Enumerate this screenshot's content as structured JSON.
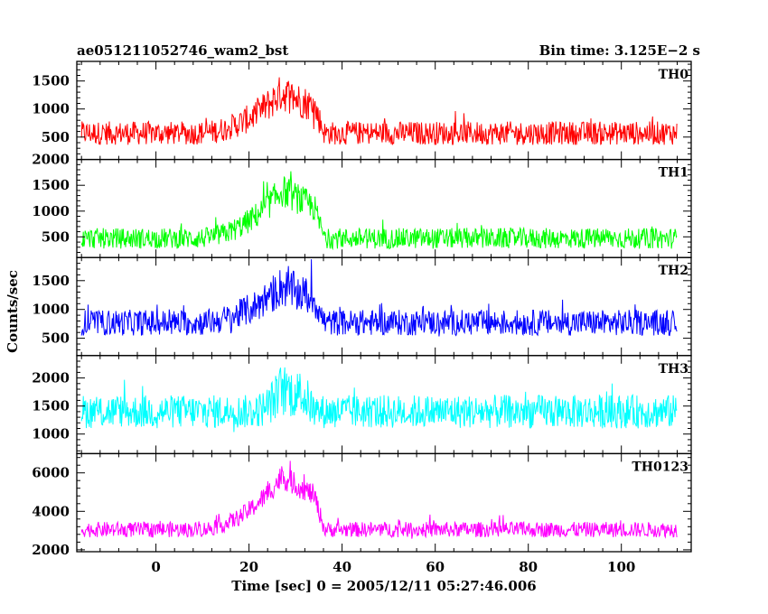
{
  "chart_data": {
    "type": "line",
    "title_left": "ae051211052746_wam2_bst",
    "title_right": "Bin time: 3.125E−2 s",
    "xlabel": "Time [sec] 0 = 2005/12/11 05:27:46.006",
    "ylabel": "Counts/sec",
    "xlim": [
      -17,
      115
    ],
    "x_ticks": [
      "0",
      "20",
      "40",
      "60",
      "80",
      "100"
    ],
    "x_tick_values": [
      0,
      20,
      40,
      60,
      80,
      100
    ],
    "x_range": [
      -16,
      112
    ],
    "bin_time": 0.03125,
    "grid": false,
    "panels": [
      {
        "name": "TH0",
        "color": "#ff0000",
        "ylim": [
          100,
          1850
        ],
        "y_ticks": [
          "500",
          "1000",
          "1500"
        ],
        "y_tick_values": [
          500,
          1000,
          1500
        ],
        "baseline": 570,
        "noise_amplitude": 420,
        "burst_peak_time": 27,
        "burst_peak": 1300,
        "burst_rise_start": 8,
        "burst_decay_end": 34
      },
      {
        "name": "TH1",
        "color": "#00ff00",
        "ylim": [
          100,
          2000
        ],
        "y_ticks": [
          "500",
          "1000",
          "1500",
          "2000"
        ],
        "y_tick_values": [
          500,
          1000,
          1500,
          2000
        ],
        "baseline": 470,
        "noise_amplitude": 400,
        "burst_peak_time": 27,
        "burst_peak": 1400,
        "burst_rise_start": 8,
        "burst_decay_end": 34
      },
      {
        "name": "TH2",
        "color": "#0000ff",
        "ylim": [
          200,
          1900
        ],
        "y_ticks": [
          "500",
          "1000",
          "1500"
        ],
        "y_tick_values": [
          500,
          1000,
          1500
        ],
        "baseline": 770,
        "noise_amplitude": 450,
        "burst_peak_time": 27,
        "burst_peak": 1400,
        "burst_rise_start": 8,
        "burst_decay_end": 34
      },
      {
        "name": "TH3",
        "color": "#00ffff",
        "ylim": [
          650,
          2400
        ],
        "y_ticks": [
          "1000",
          "1500",
          "2000"
        ],
        "y_tick_values": [
          1000,
          1500,
          2000
        ],
        "baseline": 1400,
        "noise_amplitude": 600,
        "burst_peak_time": 27,
        "burst_peak": 1800,
        "burst_rise_start": 20,
        "burst_decay_end": 32
      },
      {
        "name": "TH0123",
        "color": "#ff00ff",
        "ylim": [
          1900,
          7000
        ],
        "y_ticks": [
          "2000",
          "4000",
          "6000"
        ],
        "y_tick_values": [
          2000,
          4000,
          6000
        ],
        "baseline": 3050,
        "noise_amplitude": 800,
        "burst_peak_time": 27,
        "burst_peak": 5800,
        "burst_rise_start": 8,
        "burst_decay_end": 34
      }
    ]
  }
}
